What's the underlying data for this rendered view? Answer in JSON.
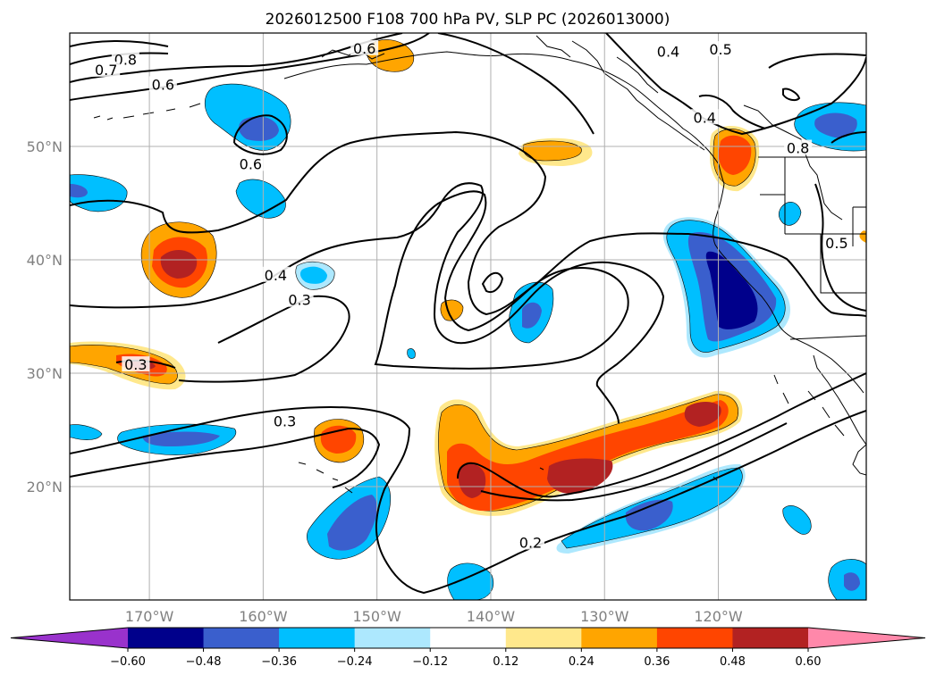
{
  "chart_data": {
    "type": "contour map",
    "title": "2026012500 F108 700 hPa PV, SLP PC (2026013000)",
    "projection": "PlateCarree",
    "lon_range": [
      -177,
      -107
    ],
    "lat_range": [
      10,
      60
    ],
    "x_ticks": [
      {
        "lon": -170,
        "label": "170°W"
      },
      {
        "lon": -160,
        "label": "160°W"
      },
      {
        "lon": -150,
        "label": "150°W"
      },
      {
        "lon": -140,
        "label": "140°W"
      },
      {
        "lon": -130,
        "label": "130°W"
      },
      {
        "lon": -120,
        "label": "120°W"
      }
    ],
    "y_ticks": [
      {
        "lat": 20,
        "label": "20°N"
      },
      {
        "lat": 30,
        "label": "30°N"
      },
      {
        "lat": 40,
        "label": "40°N"
      },
      {
        "lat": 50,
        "label": "50°N"
      }
    ],
    "colorbar": {
      "levels": [
        -0.72,
        -0.6,
        -0.48,
        -0.36,
        -0.24,
        -0.12,
        0.12,
        0.24,
        0.36,
        0.48,
        0.6,
        0.72
      ],
      "tick_labels": [
        "−0.60",
        "−0.48",
        "−0.36",
        "−0.24",
        "−0.12",
        "0.12",
        "0.24",
        "0.36",
        "0.48",
        "0.60"
      ],
      "colors": [
        "#9932cc",
        "#00008b",
        "#3a5fcd",
        "#00bfff",
        "#ade8fe",
        "#ffffff",
        "#ffe88c",
        "#ffa500",
        "#ff4500",
        "#b22222",
        "#ff88aa"
      ],
      "extend": "both"
    },
    "contour_labels": [
      {
        "text": "0.8",
        "lon": -172.1,
        "lat": 57.6
      },
      {
        "text": "0.7",
        "lon": -173.8,
        "lat": 56.7
      },
      {
        "text": "0.6",
        "lon": -168.8,
        "lat": 55.4
      },
      {
        "text": "0.6",
        "lon": -151.1,
        "lat": 58.6
      },
      {
        "text": "0.4",
        "lon": -124.4,
        "lat": 58.3
      },
      {
        "text": "0.5",
        "lon": -119.8,
        "lat": 58.5
      },
      {
        "text": "0.4",
        "lon": -121.2,
        "lat": 52.5
      },
      {
        "text": "0.6",
        "lon": -161.1,
        "lat": 48.4
      },
      {
        "text": "0.4",
        "lon": -158.9,
        "lat": 38.6
      },
      {
        "text": "0.3",
        "lon": -156.8,
        "lat": 36.4
      },
      {
        "text": "0.3",
        "lon": -171.2,
        "lat": 30.7
      },
      {
        "text": "0.3",
        "lon": -158.1,
        "lat": 25.7
      },
      {
        "text": "0.2",
        "lon": -136.5,
        "lat": 15.0
      },
      {
        "text": "0.8",
        "lon": -113.0,
        "lat": 49.8
      },
      {
        "text": "0.5",
        "lon": -109.6,
        "lat": 41.4
      }
    ]
  }
}
